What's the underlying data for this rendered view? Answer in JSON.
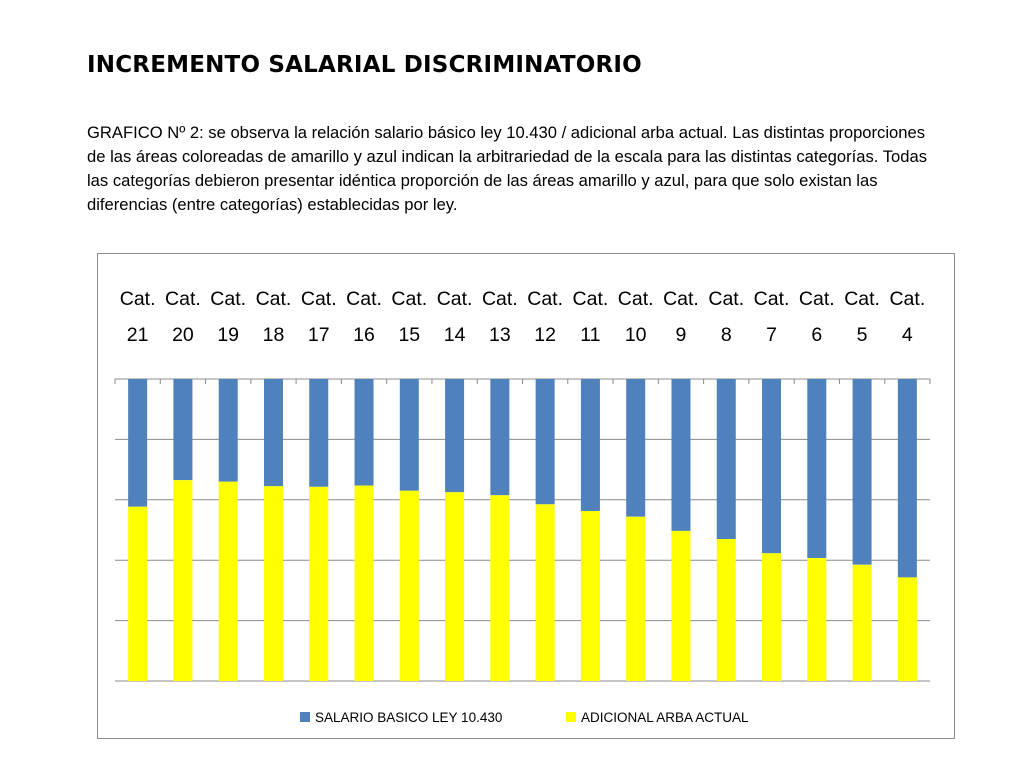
{
  "slide": {
    "title": "INCREMENTO SALARIAL DISCRIMINATORIO",
    "description": "GRAFICO Nº 2: se observa la relación salario básico ley 10.430 / adicional arba actual. Las distintas proporciones de las áreas coloreadas de amarillo y azul indican la arbitrariedad de la escala para las distintas categorías. Todas las categorías debieron presentar idéntica proporción de las áreas amarillo y azul, para que solo existan las diferencias (entre categorías) establecidas por ley."
  },
  "chart_data": {
    "type": "bar",
    "stacked": "percent",
    "orientation": "vertical",
    "category_axis_position": "top",
    "value_axis_reversed": true,
    "gridlines": true,
    "gridline_count": 5,
    "legend_position": "bottom",
    "categories": [
      [
        "Cat.",
        "21"
      ],
      [
        "Cat.",
        "20"
      ],
      [
        "Cat.",
        "19"
      ],
      [
        "Cat.",
        "18"
      ],
      [
        "Cat.",
        "17"
      ],
      [
        "Cat.",
        "16"
      ],
      [
        "Cat.",
        "15"
      ],
      [
        "Cat.",
        "14"
      ],
      [
        "Cat.",
        "13"
      ],
      [
        "Cat.",
        "12"
      ],
      [
        "Cat.",
        "11"
      ],
      [
        "Cat.",
        "10"
      ],
      [
        "Cat.",
        "9"
      ],
      [
        "Cat.",
        "8"
      ],
      [
        "Cat.",
        "7"
      ],
      [
        "Cat.",
        "6"
      ],
      [
        "Cat.",
        "5"
      ],
      [
        "Cat.",
        "4"
      ]
    ],
    "series": [
      {
        "name": "SALARIO BASICO LEY 10.430",
        "color": "#4f81bd",
        "values": [
          42.3,
          33.5,
          34.0,
          35.5,
          35.7,
          35.3,
          37.0,
          37.5,
          38.5,
          41.5,
          43.7,
          45.6,
          50.3,
          53.0,
          57.7,
          59.3,
          61.5,
          65.7
        ]
      },
      {
        "name": "ADICIONAL ARBA ACTUAL",
        "color": "#ffff00",
        "values": [
          57.7,
          66.5,
          66.0,
          64.5,
          64.3,
          64.7,
          63.0,
          62.5,
          61.5,
          58.5,
          56.3,
          54.4,
          49.7,
          47.0,
          42.3,
          40.7,
          38.5,
          34.3
        ]
      }
    ],
    "ylim": [
      0,
      100
    ]
  }
}
